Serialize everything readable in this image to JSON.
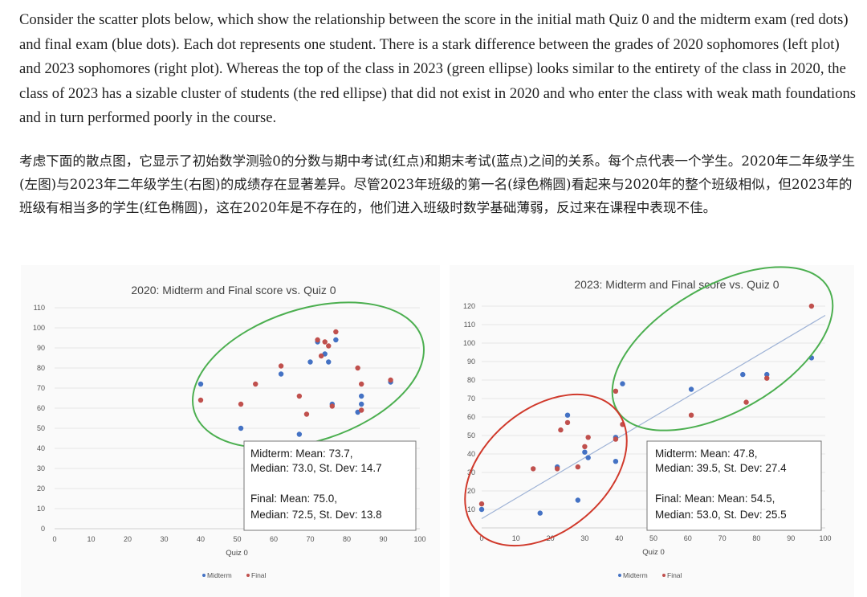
{
  "text": {
    "english": "Consider the scatter plots below, which show the relationship between the score in the initial math Quiz 0 and the midterm exam (red dots) and final exam (blue dots). Each dot represents one student. There is a stark difference between the grades of 2020 sophomores (left plot) and 2023 sophomores (right plot). Whereas the top of the class in 2023 (green ellipse) looks similar to the entirety of the class in 2020, the class of 2023 has a sizable cluster of students (the red ellipse) that did not exist in 2020 and who enter the class with weak math foundations and in turn performed poorly in the course.",
    "chinese": "考虑下面的散点图，它显示了初始数学测验0的分数与期中考试(红点)和期末考试(蓝点)之间的关系。每个点代表一个学生。2020年二年级学生(左图)与2023年二年级学生(右图)的成绩存在显著差异。尽管2023年班级的第一名(绿色椭圆)看起来与2020年的整个班级相似，但2023年的班级有相当多的学生(红色椭圆)，这在2020年是不存在的，他们进入班级时数学基础薄弱，反过来在课程中表现不佳。"
  },
  "colors": {
    "midterm": "#4472c4",
    "final": "#c0504d",
    "green_ellipse": "#4caf50",
    "red_ellipse": "#d0392b",
    "trendline": "#9fb3d6"
  },
  "chart_data": [
    {
      "type": "scatter",
      "title": "2020: Midterm and Final score vs. Quiz 0",
      "xlabel": "Quiz 0",
      "ylabel": "",
      "xlim": [
        0,
        100
      ],
      "ylim": [
        0,
        110
      ],
      "xticks": [
        "0",
        "10",
        "20",
        "30",
        "40",
        "50",
        "60",
        "70",
        "80",
        "90",
        "100"
      ],
      "yticks": [
        "0",
        "10",
        "20",
        "30",
        "40",
        "50",
        "60",
        "70",
        "80",
        "90",
        "100",
        "110"
      ],
      "legend": [
        "Midterm",
        "Final"
      ],
      "legend_position": "bottom",
      "series": [
        {
          "name": "Midterm",
          "points": [
            [
              40,
              72
            ],
            [
              51,
              50
            ],
            [
              62,
              77
            ],
            [
              67,
              47
            ],
            [
              70,
              83
            ],
            [
              72,
              93
            ],
            [
              74,
              87
            ],
            [
              75,
              83
            ],
            [
              76,
              62
            ],
            [
              77,
              94
            ],
            [
              83,
              58
            ],
            [
              84,
              66
            ],
            [
              84,
              62
            ],
            [
              92,
              73
            ]
          ]
        },
        {
          "name": "Final",
          "points": [
            [
              40,
              64
            ],
            [
              51,
              62
            ],
            [
              55,
              72
            ],
            [
              62,
              81
            ],
            [
              67,
              66
            ],
            [
              69,
              57
            ],
            [
              72,
              94
            ],
            [
              73,
              86
            ],
            [
              74,
              93
            ],
            [
              75,
              91
            ],
            [
              76,
              61
            ],
            [
              77,
              98
            ],
            [
              83,
              80
            ],
            [
              84,
              72
            ],
            [
              84,
              59
            ],
            [
              92,
              74
            ]
          ]
        }
      ],
      "annotations": {
        "midterm_line1": "Midterm: Mean: 73.7,",
        "midterm_line2": "Median: 73.0, St. Dev: 14.7",
        "final_line1": "Final: Mean: 75.0,",
        "final_line2": "Median: 72.5, St. Dev: 13.8"
      }
    },
    {
      "type": "scatter",
      "title": "2023: Midterm and Final score vs. Quiz 0",
      "xlabel": "Quiz 0",
      "ylabel": "",
      "xlim": [
        0,
        100
      ],
      "ylim": [
        0,
        120
      ],
      "xticks": [
        "0",
        "10",
        "20",
        "30",
        "40",
        "50",
        "60",
        "70",
        "80",
        "90",
        "100"
      ],
      "yticks": [
        "10",
        "20",
        "30",
        "40",
        "50",
        "60",
        "70",
        "80",
        "90",
        "100",
        "110",
        "120"
      ],
      "legend": [
        "Midterm",
        "Final"
      ],
      "legend_position": "bottom",
      "trendline": [
        [
          0,
          5
        ],
        [
          100,
          115
        ]
      ],
      "series": [
        {
          "name": "Midterm",
          "points": [
            [
              0,
              10
            ],
            [
              17,
              8
            ],
            [
              22,
              33
            ],
            [
              25,
              61
            ],
            [
              28,
              15
            ],
            [
              30,
              41
            ],
            [
              31,
              38
            ],
            [
              39,
              49
            ],
            [
              39,
              36
            ],
            [
              41,
              78
            ],
            [
              61,
              75
            ],
            [
              76,
              83
            ],
            [
              83,
              83
            ],
            [
              96,
              92
            ]
          ]
        },
        {
          "name": "Final",
          "points": [
            [
              0,
              13
            ],
            [
              15,
              32
            ],
            [
              22,
              32
            ],
            [
              23,
              53
            ],
            [
              25,
              57
            ],
            [
              28,
              33
            ],
            [
              30,
              44
            ],
            [
              31,
              49
            ],
            [
              39,
              48
            ],
            [
              39,
              74
            ],
            [
              41,
              56
            ],
            [
              61,
              61
            ],
            [
              77,
              68
            ],
            [
              83,
              81
            ],
            [
              96,
              120
            ]
          ]
        }
      ],
      "annotations": {
        "midterm_line1": "Midterm: Mean: 47.8,",
        "midterm_line2": "Median: 39.5, St. Dev: 27.4",
        "final_line1": "Final: Mean: Mean: 54.5,",
        "final_line2": "Median: 53.0, St. Dev: 25.5"
      }
    }
  ]
}
